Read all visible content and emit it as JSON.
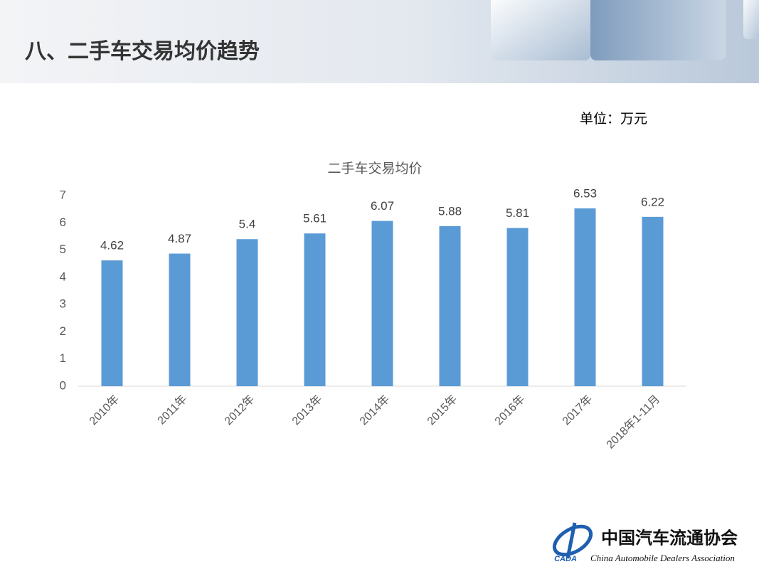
{
  "header": {
    "title": "八、二手车交易均价趋势"
  },
  "unit": "单位：万元",
  "chart_data": {
    "type": "bar",
    "title": "二手车交易均价",
    "categories": [
      "2010年",
      "2011年",
      "2012年",
      "2013年",
      "2014年",
      "2015年",
      "2016年",
      "2017年",
      "2018年1-11月"
    ],
    "values": [
      4.62,
      4.87,
      5.4,
      5.61,
      6.07,
      5.88,
      5.81,
      6.53,
      6.22
    ],
    "color": "#5b9bd5",
    "ylim": [
      0,
      7
    ],
    "yticks": [
      0,
      1,
      2,
      3,
      4,
      5,
      6,
      7
    ],
    "grid": false
  },
  "footer": {
    "org_cn": "中国汽车流通协会",
    "org_en": "China Automobile Dealers Association",
    "logo": "CADA"
  }
}
